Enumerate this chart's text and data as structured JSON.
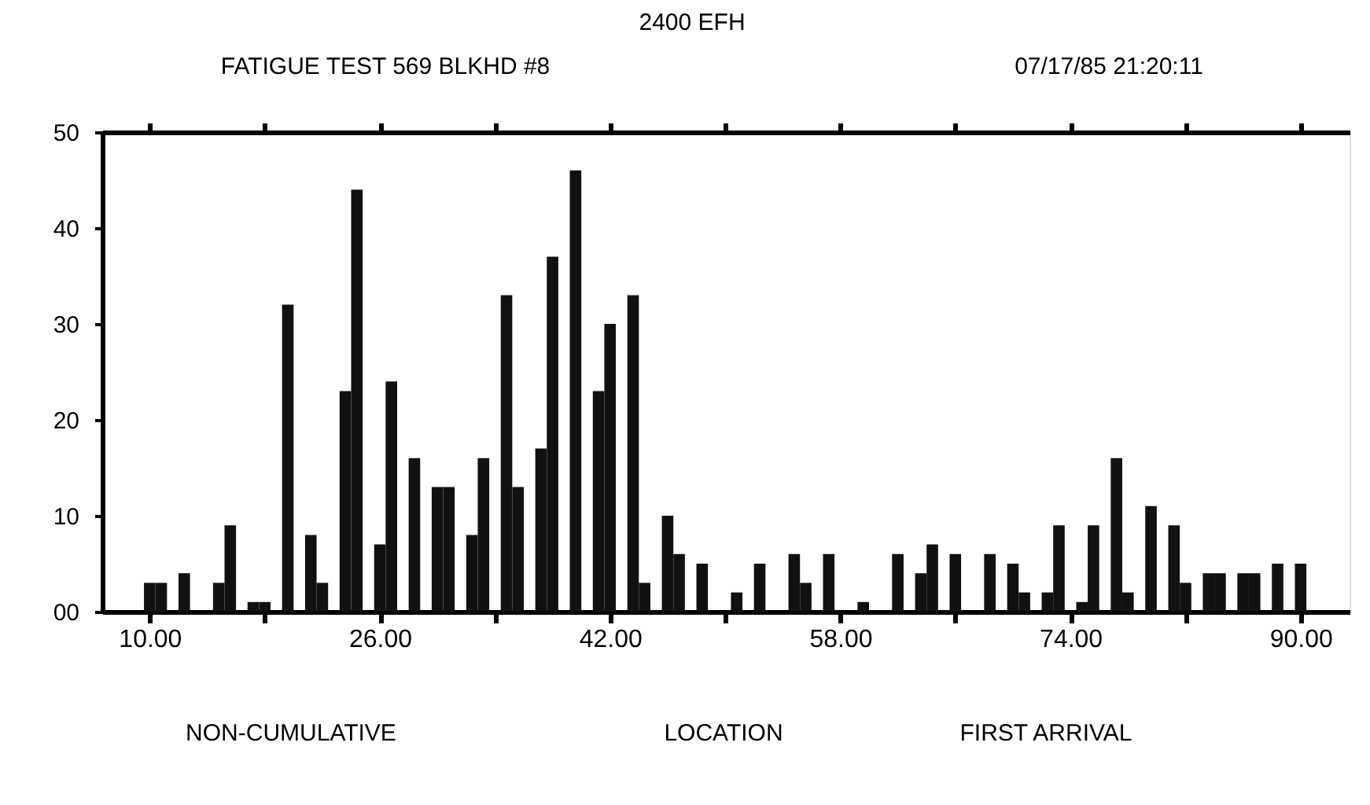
{
  "chart_data": {
    "type": "histogram",
    "title": "2400 EFH",
    "subtitle": "FATIGUE TEST 569 BLKHD #8",
    "xlabel": "LOCATION",
    "annotations": [
      "07/17/85 21:20:11",
      "NON-CUMULATIVE",
      "FIRST ARRIVAL"
    ],
    "bins": [
      9.6,
      10.4,
      11.2,
      12,
      12.8,
      13.6,
      14.4,
      15.2,
      16,
      16.8,
      17.6,
      18.4,
      19.2,
      20,
      20.8,
      21.6,
      22.4,
      23.2,
      24,
      24.8,
      25.6,
      26.4,
      27.2,
      28,
      28.8,
      29.6,
      30.4,
      31.2,
      32,
      32.8,
      33.6,
      34.4,
      35.2,
      36,
      36.8,
      37.6,
      38.4,
      39.2,
      40,
      40.8,
      41.6,
      42.4,
      43.2,
      44,
      44.8,
      45.6,
      46.4,
      47.2,
      48,
      48.8,
      49.6,
      50.4,
      51.2,
      52,
      52.8,
      53.6,
      54.4,
      55.2,
      56,
      56.8,
      57.6,
      58.4,
      59.2,
      60,
      60.8,
      61.6,
      62.4,
      63.2,
      64,
      64.8,
      65.6,
      66.4,
      67.2,
      68,
      68.8,
      69.6,
      70.4,
      71.2,
      72,
      72.8,
      73.6,
      74.4,
      75.2,
      76,
      76.8,
      77.6,
      78.4,
      79.2,
      80,
      80.8,
      81.6,
      82.4,
      83.2,
      84,
      84.8,
      85.6,
      86.4,
      87.2,
      88,
      88.8,
      89.6,
      90.4
    ],
    "values": [
      3,
      3,
      0,
      4,
      0,
      0,
      3,
      9,
      0,
      1,
      1,
      0,
      32,
      0,
      8,
      3,
      0,
      23,
      44,
      0,
      7,
      24,
      0,
      16,
      0,
      13,
      13,
      0,
      8,
      16,
      0,
      33,
      13,
      0,
      17,
      37,
      0,
      46,
      0,
      23,
      30,
      0,
      33,
      3,
      0,
      10,
      6,
      0,
      5,
      0,
      0,
      2,
      0,
      5,
      0,
      0,
      6,
      3,
      0,
      6,
      0,
      0,
      1,
      0,
      0,
      6,
      0,
      4,
      7,
      0,
      6,
      0,
      0,
      6,
      0,
      5,
      2,
      0,
      2,
      9,
      0,
      1,
      9,
      0,
      16,
      2,
      0,
      11,
      0,
      9,
      3,
      0,
      4,
      4,
      0,
      4,
      4,
      0,
      5,
      0,
      5
    ],
    "color": "#111111",
    "xlim": [
      6.7,
      93.4
    ],
    "xticks": [
      {
        "value": 10,
        "label": "10.00"
      },
      {
        "value": 18,
        "label": null
      },
      {
        "value": 26,
        "label": "26.00"
      },
      {
        "value": 34,
        "label": null
      },
      {
        "value": 42,
        "label": "42.00"
      },
      {
        "value": 50,
        "label": null
      },
      {
        "value": 58,
        "label": "58.00"
      },
      {
        "value": 66,
        "label": null
      },
      {
        "value": 74,
        "label": "74.00"
      },
      {
        "value": 82,
        "label": null
      },
      {
        "value": 90,
        "label": "90.00"
      }
    ],
    "ylim": [
      0,
      50
    ],
    "yticks": [
      {
        "value": 0,
        "label": "00"
      },
      10,
      20,
      30,
      40,
      50
    ],
    "grid": false
  }
}
